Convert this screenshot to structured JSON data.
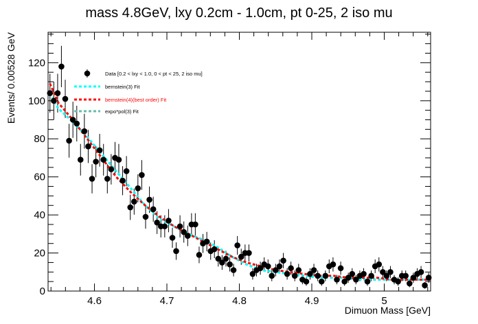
{
  "chart_data": {
    "type": "scatter",
    "title": "mass 4.8GeV, lxy 0.2cm - 1.0cm, pt 0-25, 2 iso mu",
    "xlabel": "Dimuon Mass [GeV]",
    "ylabel": "Events/ 0.00528 GeV",
    "xlim": [
      4.536,
      5.064
    ],
    "ylim": [
      0,
      136
    ],
    "xticks": [
      4.6,
      4.7,
      4.8,
      4.9,
      5.0
    ],
    "xtick_labels": [
      "4.6",
      "4.7",
      "4.8",
      "4.9",
      "5"
    ],
    "yticks": [
      0,
      20,
      40,
      60,
      80,
      100,
      120
    ],
    "yticks_labels": [
      "0",
      "20",
      "40",
      "60",
      "80",
      "100",
      "120"
    ],
    "grid": false,
    "legend_position": "top-left",
    "series": [
      {
        "name": "Data [0.2 < lxy < 1.0, 0 < pt < 25, 2 iso mu]",
        "style": "points-errorbars",
        "color": "#000000",
        "x": [
          4.5386,
          4.5439,
          4.5492,
          4.5544,
          4.5597,
          4.565,
          4.5703,
          4.5756,
          4.5808,
          4.5861,
          4.5914,
          4.5967,
          4.602,
          4.6072,
          4.6125,
          4.6178,
          4.6231,
          4.6284,
          4.6336,
          4.6389,
          4.6442,
          4.6495,
          4.6548,
          4.66,
          4.6653,
          4.6706,
          4.6759,
          4.6812,
          4.6864,
          4.6917,
          4.697,
          4.7023,
          4.7076,
          4.7128,
          4.7181,
          4.7234,
          4.7287,
          4.734,
          4.7392,
          4.7445,
          4.7498,
          4.7551,
          4.7604,
          4.7656,
          4.7709,
          4.7762,
          4.7815,
          4.7868,
          4.792,
          4.7973,
          4.8026,
          4.8079,
          4.8132,
          4.8184,
          4.8237,
          4.829,
          4.8343,
          4.8396,
          4.8448,
          4.8501,
          4.8554,
          4.8607,
          4.866,
          4.8712,
          4.8765,
          4.8818,
          4.8871,
          4.8924,
          4.8976,
          4.9029,
          4.9082,
          4.9135,
          4.9188,
          4.924,
          4.9293,
          4.9346,
          4.9399,
          4.9452,
          4.9504,
          4.9557,
          4.961,
          4.9663,
          4.9716,
          4.9768,
          4.9821,
          4.9874,
          4.9927,
          4.998,
          5.0032,
          5.0085,
          5.0138,
          5.0191,
          5.0244,
          5.0296,
          5.0349,
          5.0402,
          5.0455,
          5.0508,
          5.056,
          5.0613
        ],
        "y": [
          104,
          100,
          104,
          118,
          101,
          79,
          90,
          88,
          69,
          84,
          76,
          59,
          68,
          74,
          69,
          59,
          64,
          70,
          69,
          58,
          63,
          44,
          47,
          54,
          61,
          39,
          48,
          43,
          36,
          34,
          34,
          37,
          28,
          21,
          34,
          31,
          29,
          35,
          35,
          19,
          25,
          26,
          21,
          22,
          17,
          15,
          17,
          14,
          11,
          24,
          18,
          20,
          20,
          9,
          11,
          12,
          14,
          13,
          8,
          11,
          13,
          16,
          9,
          12,
          8,
          11,
          6,
          5,
          9,
          11,
          8,
          5,
          8,
          13,
          14,
          6,
          12,
          5,
          7,
          9,
          6,
          8,
          9,
          5,
          8,
          13,
          14,
          10,
          8,
          10,
          6,
          5,
          8,
          8,
          4,
          7,
          9,
          10,
          3,
          7
        ]
      },
      {
        "name": "bernstein(3) Fit",
        "style": "dashed-line",
        "color": "#00ffff",
        "x": [
          4.5386,
          4.55,
          4.57,
          4.59,
          4.61,
          4.63,
          4.65,
          4.67,
          4.69,
          4.71,
          4.73,
          4.75,
          4.77,
          4.79,
          4.81,
          4.83,
          4.85,
          4.87,
          4.89,
          4.91,
          4.93,
          4.95,
          4.97,
          4.99,
          5.01,
          5.03,
          5.05,
          5.064
        ],
        "y": [
          104,
          96,
          89,
          81,
          72,
          63,
          54,
          45,
          38,
          34,
          30,
          27,
          23,
          18,
          14,
          11,
          10,
          9,
          8,
          7,
          7,
          7,
          6,
          6,
          6,
          6,
          6,
          6
        ]
      },
      {
        "name": "bernstein(4)(best order) Fit",
        "style": "dashed-line",
        "color": "#ff0000",
        "x": [
          4.5386,
          4.55,
          4.57,
          4.59,
          4.61,
          4.63,
          4.65,
          4.67,
          4.69,
          4.71,
          4.73,
          4.75,
          4.77,
          4.79,
          4.81,
          4.83,
          4.85,
          4.87,
          4.89,
          4.91,
          4.93,
          4.95,
          4.97,
          4.99,
          5.01,
          5.03,
          5.05,
          5.064
        ],
        "y": [
          109,
          99,
          90,
          80,
          70,
          60,
          52,
          45,
          39,
          34,
          30,
          26,
          22,
          18,
          15,
          13,
          11,
          10,
          9,
          8,
          8,
          7,
          7,
          7,
          6,
          6,
          6,
          6
        ]
      },
      {
        "name": "expo*pol(3) Fit",
        "style": "dashed-line",
        "color": "#66bbaa",
        "x": [
          4.5386,
          4.55,
          4.57,
          4.59,
          4.61,
          4.63,
          4.65,
          4.67,
          4.69,
          4.71,
          4.73,
          4.75,
          4.77,
          4.79,
          4.81,
          4.83,
          4.85,
          4.87,
          4.89,
          4.91,
          4.93,
          4.95,
          4.97,
          4.99,
          5.01,
          5.03,
          5.05,
          5.064
        ],
        "y": [
          104,
          96,
          89,
          81,
          72,
          63,
          54,
          45,
          38,
          34,
          30,
          27,
          23,
          18,
          14,
          11,
          10,
          9,
          8,
          7,
          7,
          7,
          6,
          6,
          6,
          6,
          6,
          6
        ]
      }
    ]
  }
}
